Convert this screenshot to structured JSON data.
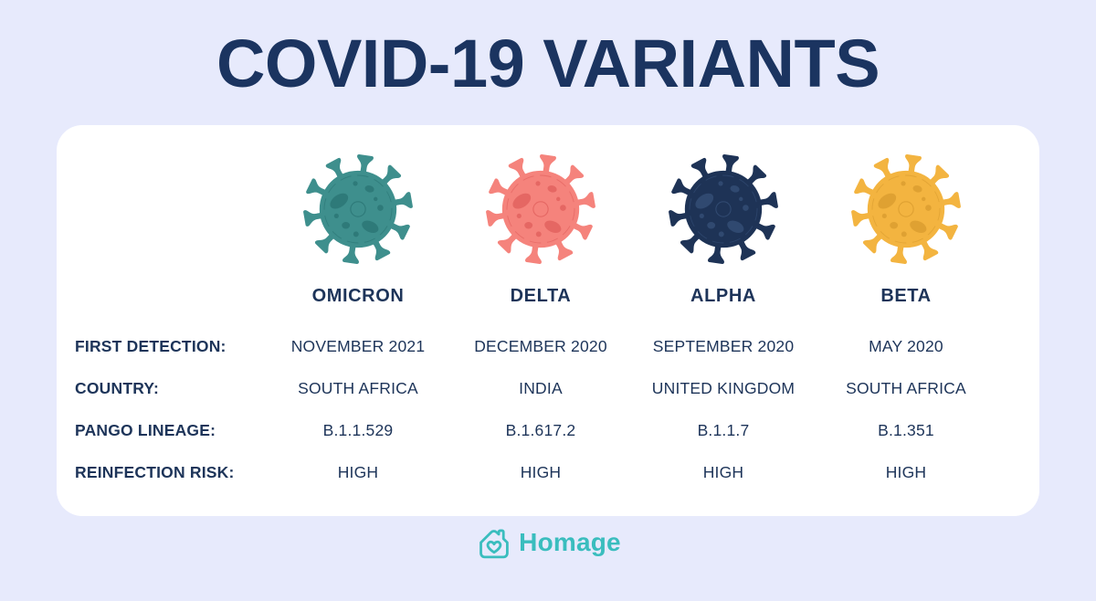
{
  "title": "COVID-19 VARIANTS",
  "colors": {
    "background": "#E7EAFC",
    "card": "#FFFFFF",
    "text_navy": "#1D3459",
    "title_navy": "#1B3460",
    "logo_teal": "#3ABDBE"
  },
  "chart_data": {
    "type": "table",
    "title": "COVID-19 VARIANTS",
    "columns": [
      {
        "name": "OMICRON",
        "virus_body_color": "#3E8F8D",
        "virus_detail_color": "#2E7A79"
      },
      {
        "name": "DELTA",
        "virus_body_color": "#F5837C",
        "virus_detail_color": "#E56763"
      },
      {
        "name": "ALPHA",
        "virus_body_color": "#1E3356",
        "virus_detail_color": "#304970"
      },
      {
        "name": "BETA",
        "virus_body_color": "#F3B440",
        "virus_detail_color": "#DFA132"
      }
    ],
    "rows": [
      {
        "label": "FIRST DETECTION:",
        "values": [
          "NOVEMBER 2021",
          "DECEMBER 2020",
          "SEPTEMBER 2020",
          "MAY 2020"
        ]
      },
      {
        "label": "COUNTRY:",
        "values": [
          "SOUTH AFRICA",
          "INDIA",
          "UNITED KINGDOM",
          "SOUTH AFRICA"
        ]
      },
      {
        "label": "PANGO LINEAGE:",
        "values": [
          "B.1.1.529",
          "B.1.617.2",
          "B.1.1.7",
          "B.1.351"
        ]
      },
      {
        "label": "REINFECTION RISK:",
        "values": [
          "HIGH",
          "HIGH",
          "HIGH",
          "HIGH"
        ]
      }
    ]
  },
  "footer": {
    "logo_text": "Homage",
    "logo_icon": "house-with-heart-icon"
  }
}
